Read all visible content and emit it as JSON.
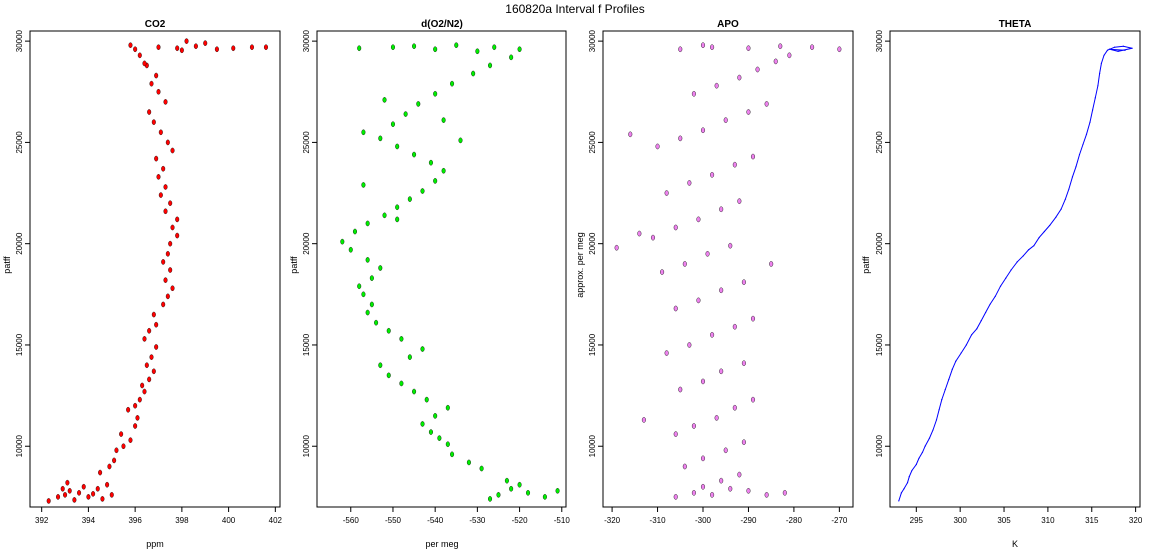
{
  "figure_title": "160820a   Interval f Profiles",
  "chart_data": [
    {
      "type": "scatter",
      "title": "CO2",
      "xlabel": "ppm",
      "ylabel": "patff",
      "xlim": [
        391.5,
        402.2
      ],
      "ylim": [
        7000,
        30500
      ],
      "xticks": [
        392,
        394,
        396,
        398,
        400,
        402
      ],
      "yticks": [
        10000,
        15000,
        20000,
        25000,
        30000
      ],
      "grid": false,
      "color": "#ff0000",
      "points": [
        [
          392.3,
          7300
        ],
        [
          392.7,
          7500
        ],
        [
          393.0,
          7600
        ],
        [
          393.2,
          7800
        ],
        [
          393.6,
          7700
        ],
        [
          394.0,
          7500
        ],
        [
          394.4,
          7900
        ],
        [
          393.8,
          8000
        ],
        [
          394.6,
          7400
        ],
        [
          395.0,
          7600
        ],
        [
          392.9,
          7900
        ],
        [
          393.4,
          7350
        ],
        [
          394.2,
          7650
        ],
        [
          394.8,
          8100
        ],
        [
          393.1,
          8200
        ],
        [
          394.5,
          8700
        ],
        [
          394.9,
          9000
        ],
        [
          395.1,
          9300
        ],
        [
          395.2,
          9800
        ],
        [
          395.5,
          10000
        ],
        [
          395.8,
          10300
        ],
        [
          395.4,
          10600
        ],
        [
          396.0,
          11000
        ],
        [
          396.1,
          11400
        ],
        [
          395.7,
          11800
        ],
        [
          396.0,
          12000
        ],
        [
          396.2,
          12300
        ],
        [
          396.4,
          12700
        ],
        [
          396.3,
          13000
        ],
        [
          396.6,
          13300
        ],
        [
          396.8,
          13700
        ],
        [
          396.5,
          14000
        ],
        [
          396.7,
          14400
        ],
        [
          396.9,
          14900
        ],
        [
          396.4,
          15300
        ],
        [
          396.6,
          15700
        ],
        [
          396.9,
          16000
        ],
        [
          396.8,
          16500
        ],
        [
          397.2,
          17000
        ],
        [
          397.4,
          17400
        ],
        [
          397.6,
          17800
        ],
        [
          397.3,
          18200
        ],
        [
          397.5,
          18700
        ],
        [
          397.2,
          19100
        ],
        [
          397.4,
          19500
        ],
        [
          397.5,
          20000
        ],
        [
          397.8,
          20400
        ],
        [
          397.6,
          20800
        ],
        [
          397.8,
          21200
        ],
        [
          397.3,
          21600
        ],
        [
          397.5,
          22000
        ],
        [
          397.1,
          22400
        ],
        [
          397.3,
          22800
        ],
        [
          397.0,
          23300
        ],
        [
          397.2,
          23700
        ],
        [
          396.9,
          24200
        ],
        [
          397.6,
          24600
        ],
        [
          397.4,
          25000
        ],
        [
          397.1,
          25500
        ],
        [
          396.8,
          26000
        ],
        [
          396.6,
          26500
        ],
        [
          397.3,
          27000
        ],
        [
          397.0,
          27500
        ],
        [
          396.7,
          27900
        ],
        [
          396.9,
          28300
        ],
        [
          396.5,
          28800
        ],
        [
          396.2,
          29300
        ],
        [
          397.0,
          29700
        ],
        [
          397.8,
          29650
        ],
        [
          398.6,
          29750
        ],
        [
          399.5,
          29600
        ],
        [
          400.2,
          29650
        ],
        [
          401.0,
          29700
        ],
        [
          398.0,
          29550
        ],
        [
          396.0,
          29600
        ],
        [
          395.8,
          29800
        ],
        [
          399.0,
          29900
        ],
        [
          398.2,
          30000
        ],
        [
          401.6,
          29700
        ],
        [
          396.4,
          28900
        ]
      ]
    },
    {
      "type": "scatter",
      "title": "d(O2/N2)",
      "xlabel": "per meg",
      "ylabel": "patff",
      "xlim": [
        -568,
        -509
      ],
      "ylim": [
        7000,
        30500
      ],
      "xticks": [
        -560,
        -550,
        -540,
        -530,
        -520,
        -510
      ],
      "yticks": [
        10000,
        15000,
        20000,
        25000,
        30000
      ],
      "grid": false,
      "color": "#00ee00",
      "points": [
        [
          -511,
          7800
        ],
        [
          -514,
          7500
        ],
        [
          -518,
          7700
        ],
        [
          -522,
          7900
        ],
        [
          -525,
          7600
        ],
        [
          -527,
          7400
        ],
        [
          -520,
          8100
        ],
        [
          -523,
          8300
        ],
        [
          -529,
          8900
        ],
        [
          -532,
          9200
        ],
        [
          -536,
          9600
        ],
        [
          -537,
          10100
        ],
        [
          -539,
          10400
        ],
        [
          -541,
          10700
        ],
        [
          -543,
          11100
        ],
        [
          -540,
          11500
        ],
        [
          -537,
          11900
        ],
        [
          -542,
          12300
        ],
        [
          -545,
          12700
        ],
        [
          -548,
          13100
        ],
        [
          -551,
          13500
        ],
        [
          -553,
          14000
        ],
        [
          -546,
          14400
        ],
        [
          -543,
          14800
        ],
        [
          -548,
          15300
        ],
        [
          -551,
          15700
        ],
        [
          -554,
          16100
        ],
        [
          -556,
          16600
        ],
        [
          -555,
          17000
        ],
        [
          -557,
          17500
        ],
        [
          -558,
          17900
        ],
        [
          -555,
          18300
        ],
        [
          -553,
          18800
        ],
        [
          -556,
          19200
        ],
        [
          -560,
          19700
        ],
        [
          -562,
          20100
        ],
        [
          -559,
          20600
        ],
        [
          -556,
          21000
        ],
        [
          -552,
          21400
        ],
        [
          -549,
          21800
        ],
        [
          -546,
          22200
        ],
        [
          -543,
          22600
        ],
        [
          -540,
          23100
        ],
        [
          -538,
          23600
        ],
        [
          -541,
          24000
        ],
        [
          -545,
          24400
        ],
        [
          -549,
          24800
        ],
        [
          -553,
          25200
        ],
        [
          -557,
          25500
        ],
        [
          -550,
          25900
        ],
        [
          -547,
          26400
        ],
        [
          -544,
          26900
        ],
        [
          -540,
          27400
        ],
        [
          -536,
          27900
        ],
        [
          -531,
          28400
        ],
        [
          -527,
          28800
        ],
        [
          -522,
          29200
        ],
        [
          -530,
          29500
        ],
        [
          -540,
          29600
        ],
        [
          -550,
          29700
        ],
        [
          -558,
          29650
        ],
        [
          -545,
          29750
        ],
        [
          -535,
          29800
        ],
        [
          -526,
          29700
        ],
        [
          -520,
          29600
        ],
        [
          -552,
          27100
        ],
        [
          -538,
          26100
        ],
        [
          -534,
          25100
        ],
        [
          -557,
          22900
        ],
        [
          -549,
          21200
        ]
      ]
    },
    {
      "type": "scatter",
      "title": "APO",
      "xlabel": "",
      "ylabel": "approx. per meg",
      "xlim": [
        -322,
        -267
      ],
      "ylim": [
        7000,
        30500
      ],
      "xticks": [
        -320,
        -310,
        -300,
        -290,
        -280,
        -270
      ],
      "yticks": [
        10000,
        15000,
        20000,
        25000,
        30000
      ],
      "grid": false,
      "color": "#ee82ee",
      "points": [
        [
          -306,
          7500
        ],
        [
          -302,
          7700
        ],
        [
          -298,
          7600
        ],
        [
          -294,
          7900
        ],
        [
          -290,
          7800
        ],
        [
          -286,
          7600
        ],
        [
          -282,
          7700
        ],
        [
          -300,
          8000
        ],
        [
          -296,
          8300
        ],
        [
          -292,
          8600
        ],
        [
          -304,
          9000
        ],
        [
          -300,
          9400
        ],
        [
          -295,
          9800
        ],
        [
          -291,
          10200
        ],
        [
          -306,
          10600
        ],
        [
          -302,
          11000
        ],
        [
          -297,
          11400
        ],
        [
          -293,
          11900
        ],
        [
          -289,
          12300
        ],
        [
          -305,
          12800
        ],
        [
          -300,
          13200
        ],
        [
          -296,
          13700
        ],
        [
          -291,
          14100
        ],
        [
          -308,
          14600
        ],
        [
          -303,
          15000
        ],
        [
          -298,
          15500
        ],
        [
          -293,
          15900
        ],
        [
          -289,
          16300
        ],
        [
          -306,
          16800
        ],
        [
          -301,
          17200
        ],
        [
          -296,
          17700
        ],
        [
          -291,
          18100
        ],
        [
          -309,
          18600
        ],
        [
          -304,
          19000
        ],
        [
          -299,
          19500
        ],
        [
          -294,
          19900
        ],
        [
          -311,
          20300
        ],
        [
          -306,
          20800
        ],
        [
          -301,
          21200
        ],
        [
          -296,
          21700
        ],
        [
          -292,
          22100
        ],
        [
          -308,
          22500
        ],
        [
          -303,
          23000
        ],
        [
          -298,
          23400
        ],
        [
          -293,
          23900
        ],
        [
          -289,
          24300
        ],
        [
          -310,
          24800
        ],
        [
          -305,
          25200
        ],
        [
          -300,
          25600
        ],
        [
          -295,
          26100
        ],
        [
          -290,
          26500
        ],
        [
          -286,
          26900
        ],
        [
          -302,
          27400
        ],
        [
          -297,
          27800
        ],
        [
          -292,
          28200
        ],
        [
          -288,
          28600
        ],
        [
          -284,
          29000
        ],
        [
          -281,
          29300
        ],
        [
          -305,
          29600
        ],
        [
          -298,
          29700
        ],
        [
          -290,
          29650
        ],
        [
          -283,
          29750
        ],
        [
          -276,
          29700
        ],
        [
          -270,
          29600
        ],
        [
          -300,
          29800
        ],
        [
          -314,
          20500
        ],
        [
          -319,
          19800
        ],
        [
          -313,
          11300
        ],
        [
          -316,
          25400
        ],
        [
          -285,
          19000
        ]
      ]
    },
    {
      "type": "line",
      "title": "THETA",
      "xlabel": "K",
      "ylabel": "patff",
      "xlim": [
        292,
        320.5
      ],
      "ylim": [
        7000,
        30500
      ],
      "xticks": [
        295,
        300,
        305,
        310,
        315,
        320
      ],
      "yticks": [
        10000,
        15000,
        20000,
        25000,
        30000
      ],
      "grid": false,
      "color": "#0000ff",
      "points": [
        [
          293.0,
          7300
        ],
        [
          293.3,
          7700
        ],
        [
          293.6,
          7900
        ],
        [
          294.0,
          8200
        ],
        [
          294.2,
          8500
        ],
        [
          294.5,
          8800
        ],
        [
          295.0,
          9100
        ],
        [
          295.3,
          9400
        ],
        [
          295.7,
          9700
        ],
        [
          296.0,
          10000
        ],
        [
          296.5,
          10400
        ],
        [
          296.9,
          10800
        ],
        [
          297.3,
          11300
        ],
        [
          297.6,
          11800
        ],
        [
          297.9,
          12300
        ],
        [
          298.3,
          12800
        ],
        [
          298.7,
          13300
        ],
        [
          299.1,
          13800
        ],
        [
          299.5,
          14200
        ],
        [
          300.1,
          14600
        ],
        [
          300.7,
          15000
        ],
        [
          301.3,
          15500
        ],
        [
          301.9,
          15800
        ],
        [
          302.4,
          16200
        ],
        [
          302.9,
          16600
        ],
        [
          303.4,
          17000
        ],
        [
          304.0,
          17400
        ],
        [
          304.6,
          17900
        ],
        [
          305.2,
          18300
        ],
        [
          305.8,
          18700
        ],
        [
          306.5,
          19100
        ],
        [
          307.2,
          19400
        ],
        [
          307.8,
          19700
        ],
        [
          308.4,
          19900
        ],
        [
          309.0,
          20300
        ],
        [
          309.6,
          20600
        ],
        [
          310.2,
          20900
        ],
        [
          310.9,
          21300
        ],
        [
          311.5,
          21700
        ],
        [
          312.0,
          22200
        ],
        [
          312.4,
          22700
        ],
        [
          312.8,
          23300
        ],
        [
          313.2,
          23800
        ],
        [
          313.6,
          24400
        ],
        [
          314.0,
          24900
        ],
        [
          314.4,
          25400
        ],
        [
          314.8,
          26000
        ],
        [
          315.1,
          26600
        ],
        [
          315.4,
          27200
        ],
        [
          315.7,
          27800
        ],
        [
          315.9,
          28400
        ],
        [
          316.1,
          28900
        ],
        [
          316.4,
          29300
        ],
        [
          316.8,
          29550
        ],
        [
          317.6,
          29700
        ],
        [
          318.6,
          29750
        ],
        [
          319.6,
          29650
        ],
        [
          318.0,
          29500
        ],
        [
          317.0,
          29600
        ],
        [
          318.8,
          29550
        ]
      ]
    }
  ]
}
